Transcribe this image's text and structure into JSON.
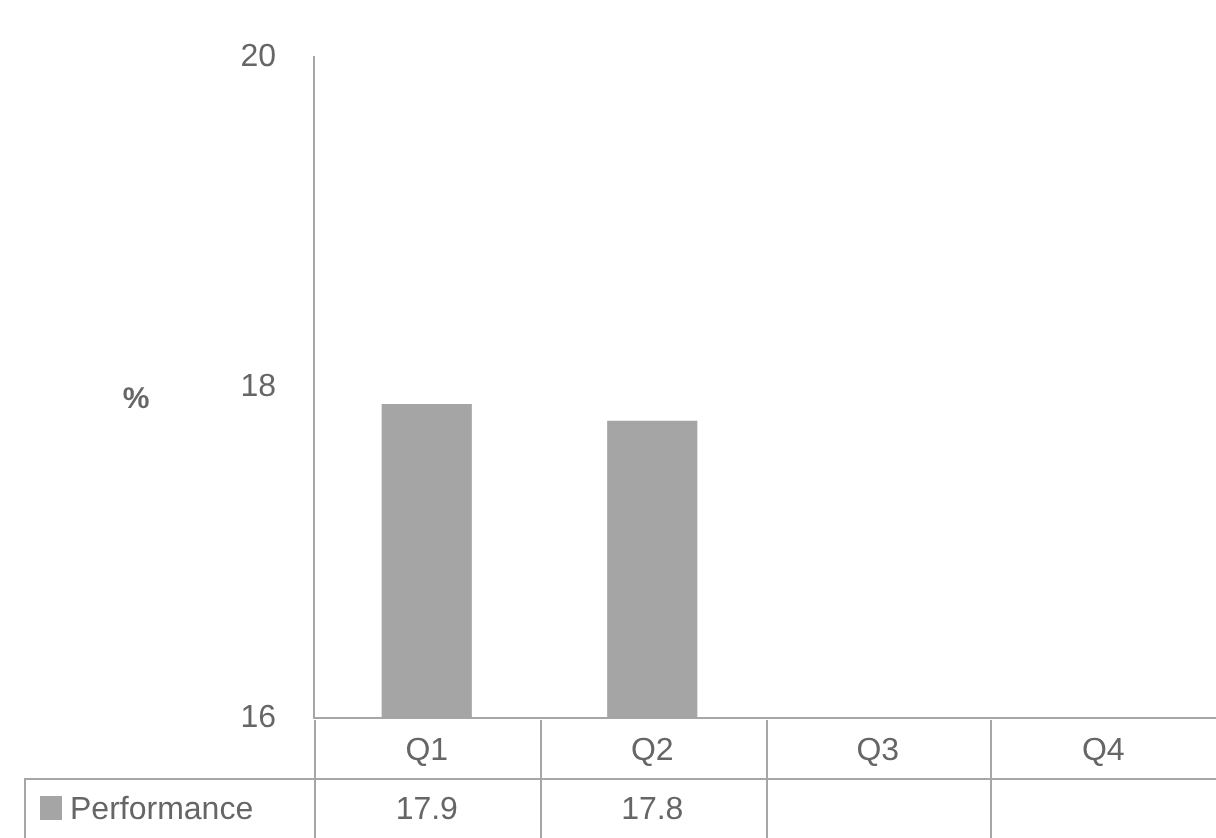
{
  "chart_data": {
    "type": "bar",
    "ylabel": "%",
    "categories": [
      "Q1",
      "Q2",
      "Q3",
      "Q4"
    ],
    "series": [
      {
        "name": "Performance",
        "color": "#a5a5a5",
        "values": [
          17.9,
          17.8,
          null,
          null
        ]
      }
    ],
    "ylim": [
      16,
      20
    ],
    "yticks": [
      16,
      18,
      20
    ],
    "grid": false,
    "legend": "bottom",
    "data_labels": true
  }
}
